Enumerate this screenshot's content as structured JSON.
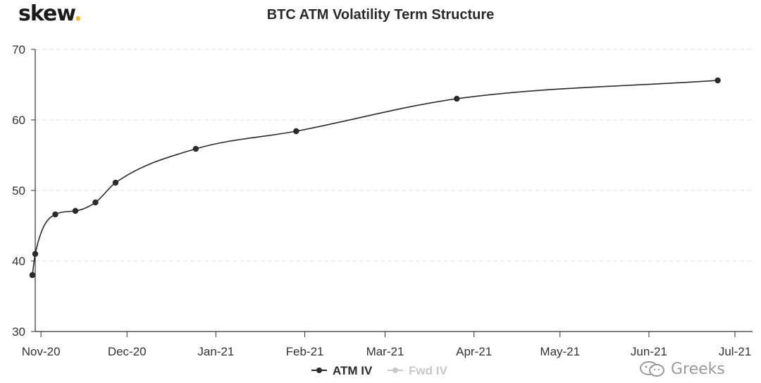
{
  "logo": {
    "text": "skew",
    "dot": "."
  },
  "title": "BTC ATM Volatility Term Structure",
  "watermark": "Greeks",
  "colors": {
    "series": "#2b2b2b",
    "inactive_series": "#c8c8c8",
    "grid": "#e0e0e0",
    "axis": "#333333",
    "logo_dot": "#f0b429"
  },
  "chart_data": {
    "type": "line",
    "title": "BTC ATM Volatility Term Structure",
    "xlabel": "",
    "ylabel": "",
    "ylim": [
      30,
      70
    ],
    "yticks": [
      30,
      40,
      50,
      60,
      70
    ],
    "xlim": [
      "2020-10-30",
      "2021-07-01"
    ],
    "xticks": [
      {
        "date": "2020-11-01",
        "label": "Nov-20"
      },
      {
        "date": "2020-12-01",
        "label": "Dec-20"
      },
      {
        "date": "2021-01-01",
        "label": "Jan-21"
      },
      {
        "date": "2021-02-01",
        "label": "Feb-21"
      },
      {
        "date": "2021-03-01",
        "label": "Mar-21"
      },
      {
        "date": "2021-04-01",
        "label": "Apr-21"
      },
      {
        "date": "2021-05-01",
        "label": "May-21"
      },
      {
        "date": "2021-06-01",
        "label": "Jun-21"
      },
      {
        "date": "2021-07-01",
        "label": "Jul-21"
      }
    ],
    "grid": "horizontal dashed",
    "legend_position": "bottom",
    "series": [
      {
        "name": "ATM IV",
        "active": true,
        "points": [
          {
            "x": "2020-10-29",
            "y": 38.0
          },
          {
            "x": "2020-10-30",
            "y": 41.0
          },
          {
            "x": "2020-11-06",
            "y": 46.6
          },
          {
            "x": "2020-11-13",
            "y": 47.1
          },
          {
            "x": "2020-11-20",
            "y": 48.3
          },
          {
            "x": "2020-11-27",
            "y": 51.1
          },
          {
            "x": "2020-12-25",
            "y": 55.9
          },
          {
            "x": "2021-01-29",
            "y": 58.4
          },
          {
            "x": "2021-03-26",
            "y": 63.0
          },
          {
            "x": "2021-06-25",
            "y": 65.6
          }
        ]
      },
      {
        "name": "Fwd IV",
        "active": false,
        "points": []
      }
    ]
  }
}
